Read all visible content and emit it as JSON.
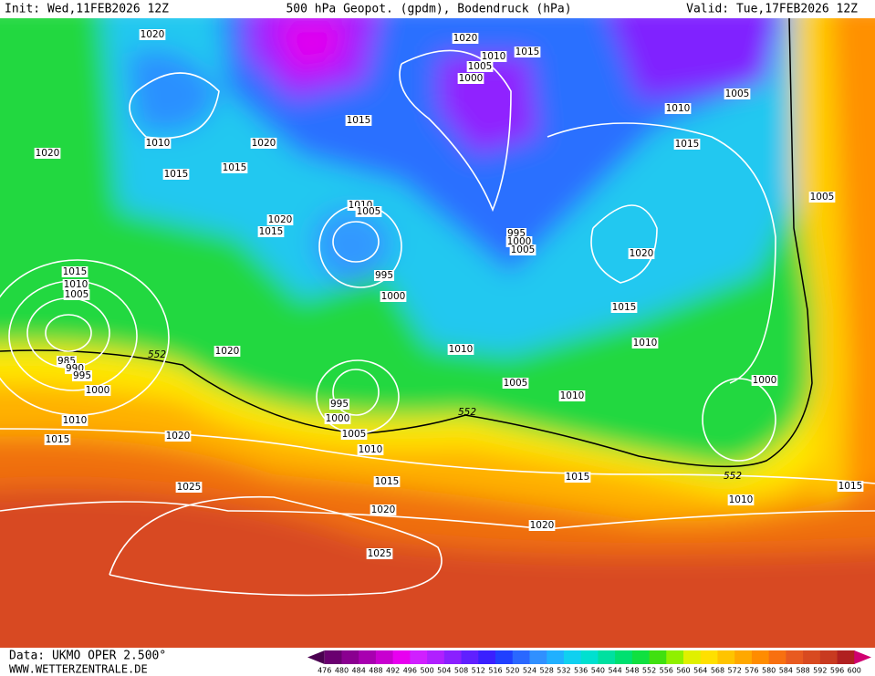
{
  "header": {
    "init": "Init: Wed,11FEB2026 12Z",
    "title": "500 hPa Geopot. (gpdm), Bodendruck (hPa)",
    "valid": "Valid: Tue,17FEB2026 12Z"
  },
  "footer": {
    "source": "Data: UKMO OPER 2.500°",
    "site": "WWW.WETTERZENTRALE.DE"
  },
  "colorbar": {
    "ticks": [
      476,
      480,
      484,
      488,
      492,
      496,
      500,
      504,
      508,
      512,
      516,
      520,
      524,
      528,
      532,
      536,
      540,
      544,
      548,
      552,
      556,
      560,
      564,
      568,
      572,
      576,
      580,
      584,
      588,
      592,
      596,
      600
    ],
    "colors": [
      "#4a0050",
      "#6a0070",
      "#8a0090",
      "#a800b0",
      "#c800d0",
      "#e800f0",
      "#d020ff",
      "#b020ff",
      "#8a20ff",
      "#6020ff",
      "#3a20ff",
      "#2040ff",
      "#2a68ff",
      "#3090ff",
      "#20b0ff",
      "#10d0f0",
      "#00e0d0",
      "#00e0a0",
      "#00e070",
      "#10e040",
      "#40e010",
      "#90f000",
      "#e0f000",
      "#ffe000",
      "#ffc400",
      "#ffa800",
      "#ff8c00",
      "#f87010",
      "#e85a20",
      "#d84a20",
      "#c83a20",
      "#b02020",
      "#d00070"
    ]
  },
  "isobar_labels": [
    "1020",
    "1020",
    "1015",
    "1010",
    "1005",
    "1000",
    "1005",
    "1010",
    "1015",
    "1010",
    "1020",
    "1020",
    "1015",
    "1015",
    "1015",
    "1005",
    "1010",
    "1005",
    "1020",
    "1015",
    "995",
    "1000",
    "1005",
    "1020",
    "995",
    "1015",
    "1010",
    "1005",
    "1000",
    "1015",
    "1020",
    "1010",
    "1010",
    "985",
    "990",
    "995",
    "1000",
    "1005",
    "1010",
    "1000",
    "995",
    "1000",
    "1010",
    "1005",
    "1015",
    "1020",
    "1010",
    "1015",
    "1015",
    "1015",
    "1025",
    "1010",
    "1020",
    "1020",
    "1025"
  ],
  "geopotential_labels": [
    "552",
    "552",
    "552"
  ]
}
